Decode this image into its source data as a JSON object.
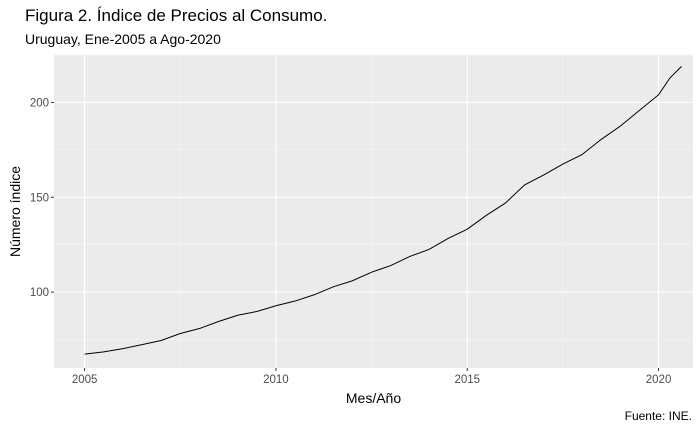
{
  "title": "Figura 2. Índice de Precios al Consumo.",
  "subtitle": "Uruguay, Ene-2005 a Ago-2020",
  "caption": "Fuente: INE.",
  "colors": {
    "panel": "#EBEBEB",
    "grid_major": "#FFFFFF",
    "grid_minor": "#F5F5F5",
    "line": "#000000",
    "tick_text": "#4D4D4D"
  },
  "chart_data": {
    "type": "line",
    "xlabel": "Mes/Año",
    "ylabel": "Número índice",
    "xlim": [
      2004.2,
      2020.9
    ],
    "ylim": [
      60,
      225
    ],
    "x_ticks": [
      2005,
      2010,
      2015,
      2020
    ],
    "x_tick_labels": [
      "2005",
      "2010",
      "2015",
      "2020"
    ],
    "y_ticks": [
      100,
      150,
      200
    ],
    "y_tick_labels": [
      "100",
      "150",
      "200"
    ],
    "grid": true,
    "series": [
      {
        "points": [
          [
            2005.0,
            67.3
          ],
          [
            2005.5,
            68.5
          ],
          [
            2006.0,
            70.2
          ],
          [
            2006.5,
            72.3
          ],
          [
            2007.0,
            74.5
          ],
          [
            2007.5,
            78.2
          ],
          [
            2008.0,
            80.8
          ],
          [
            2008.5,
            84.5
          ],
          [
            2009.0,
            87.8
          ],
          [
            2009.5,
            89.8
          ],
          [
            2010.0,
            92.8
          ],
          [
            2010.5,
            95.3
          ],
          [
            2011.0,
            98.6
          ],
          [
            2011.5,
            102.8
          ],
          [
            2012.0,
            106.0
          ],
          [
            2012.5,
            110.5
          ],
          [
            2013.0,
            114.0
          ],
          [
            2013.5,
            118.8
          ],
          [
            2014.0,
            122.5
          ],
          [
            2014.5,
            128.3
          ],
          [
            2015.0,
            133.2
          ],
          [
            2015.5,
            140.5
          ],
          [
            2016.0,
            147.0
          ],
          [
            2016.5,
            156.5
          ],
          [
            2017.0,
            161.8
          ],
          [
            2017.5,
            167.5
          ],
          [
            2018.0,
            172.5
          ],
          [
            2018.5,
            180.5
          ],
          [
            2019.0,
            187.5
          ],
          [
            2019.5,
            195.8
          ],
          [
            2020.0,
            204.0
          ],
          [
            2020.3,
            213.0
          ],
          [
            2020.6,
            219.0
          ]
        ]
      }
    ]
  }
}
